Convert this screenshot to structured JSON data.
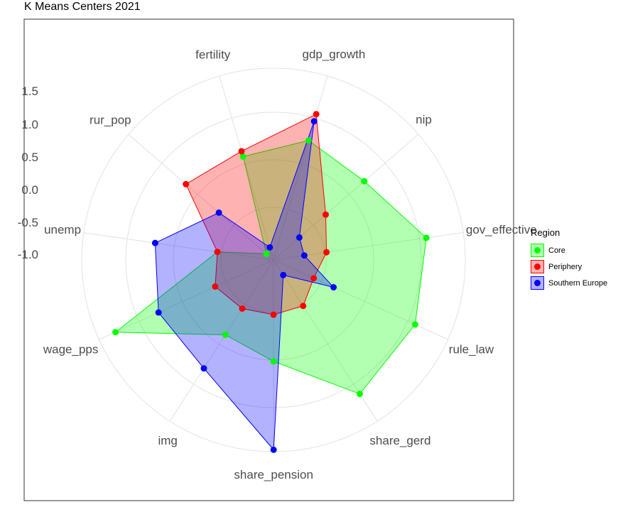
{
  "chart_data": {
    "type": "radar",
    "title": "K Means Centers 2021",
    "axes": [
      "gdp_growth",
      "nip",
      "gov_effective",
      "rule_law",
      "share_gerd",
      "share_pension",
      "img",
      "wage_pps",
      "unemp",
      "rur_pop",
      "fertility"
    ],
    "rlim": [
      -1.5,
      1.5
    ],
    "radial_ticks": [
      1.5,
      1.0,
      0.5,
      0.0,
      -0.5,
      -1.0
    ],
    "radial_tick_labels": [
      "1.5",
      "1.0",
      "0.5",
      "0.0",
      "-0.5",
      "-1.0"
    ],
    "grid": true,
    "legend": {
      "title": "Region",
      "position": "right"
    },
    "series": [
      {
        "name": "Core",
        "color": "#00ff00",
        "fill": "#00ff00",
        "values": [
          0.42,
          0.35,
          0.9,
          0.92,
          0.98,
          0.05,
          -0.15,
          1.21,
          -0.67,
          -1.43,
          0.15
        ]
      },
      {
        "name": "Periphery",
        "color": "#ff0000",
        "fill": "#ff0000",
        "values": [
          0.86,
          -0.47,
          -0.72,
          -0.87,
          -0.7,
          -0.7,
          -0.65,
          -0.55,
          -0.67,
          0.28,
          0.24
        ]
      },
      {
        "name": "Southern Europe",
        "color": "#0000ff",
        "fill": "#0000ff",
        "values": [
          0.74,
          -1.03,
          -1.08,
          -0.52,
          -1.29,
          1.47,
          0.49,
          0.45,
          0.34,
          -0.42,
          -1.37
        ]
      }
    ]
  }
}
